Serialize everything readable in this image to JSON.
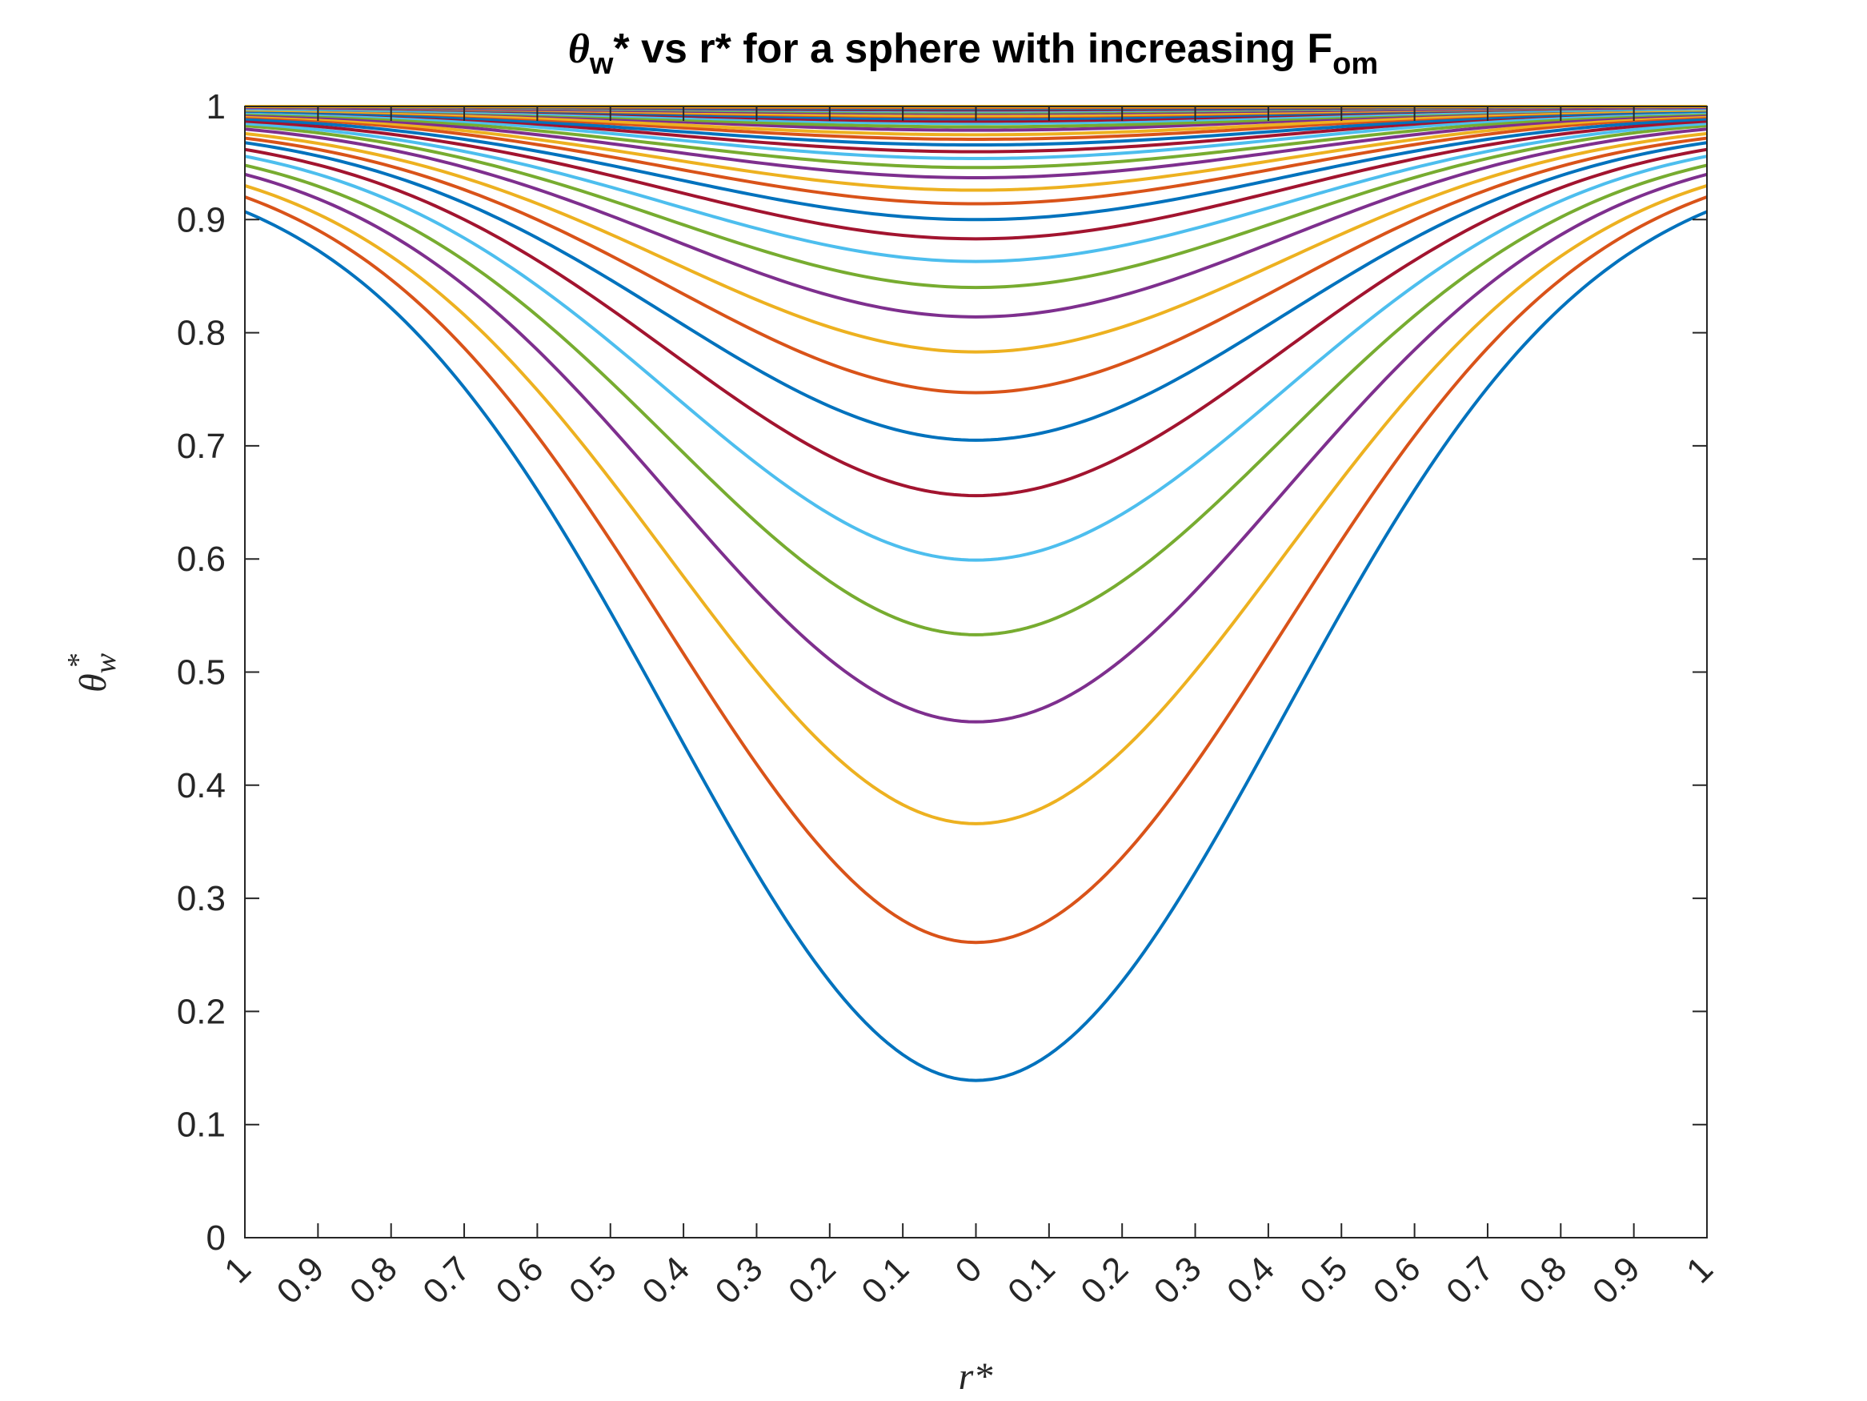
{
  "chart_data": {
    "type": "line",
    "title": {
      "theta": "θ",
      "theta_sub": "w",
      "middle": "* vs r* for a sphere with increasing F",
      "end_sub": "om"
    },
    "xlabel": "r*",
    "ylabel": {
      "base": "θ",
      "sub": "w",
      "sup": "*"
    },
    "x_range": [
      -1,
      1
    ],
    "ylim": [
      0,
      1
    ],
    "x_tick_values": [
      -1,
      -0.9,
      -0.8,
      -0.7,
      -0.6,
      -0.5,
      -0.4,
      -0.3,
      -0.2,
      -0.1,
      0,
      0.1,
      0.2,
      0.3,
      0.4,
      0.5,
      0.6,
      0.7,
      0.8,
      0.9,
      1
    ],
    "x_tick_labels": [
      "1",
      "0.9",
      "0.8",
      "0.7",
      "0.6",
      "0.5",
      "0.4",
      "0.3",
      "0.2",
      "0.1",
      "0",
      "0.1",
      "0.2",
      "0.3",
      "0.4",
      "0.5",
      "0.6",
      "0.7",
      "0.8",
      "0.9",
      "1"
    ],
    "y_tick_values": [
      0,
      0.1,
      0.2,
      0.3,
      0.4,
      0.5,
      0.6,
      0.7,
      0.8,
      0.9,
      1
    ],
    "y_tick_labels": [
      "0",
      "0.1",
      "0.2",
      "0.3",
      "0.4",
      "0.5",
      "0.6",
      "0.7",
      "0.8",
      "0.9",
      "1"
    ],
    "grid": false,
    "legend": "none",
    "color_cycle": [
      "#0072BD",
      "#D95319",
      "#EDB120",
      "#7E2F8E",
      "#77AC30",
      "#4DBEEE",
      "#A2142F"
    ],
    "series": [
      {
        "center": 0.139,
        "edge": 0.907
      },
      {
        "center": 0.261,
        "edge": 0.92
      },
      {
        "center": 0.366,
        "edge": 0.93
      },
      {
        "center": 0.456,
        "edge": 0.94
      },
      {
        "center": 0.533,
        "edge": 0.948
      },
      {
        "center": 0.599,
        "edge": 0.956
      },
      {
        "center": 0.656,
        "edge": 0.962
      },
      {
        "center": 0.705,
        "edge": 0.968
      },
      {
        "center": 0.747,
        "edge": 0.972
      },
      {
        "center": 0.783,
        "edge": 0.976
      },
      {
        "center": 0.814,
        "edge": 0.98
      },
      {
        "center": 0.84,
        "edge": 0.983
      },
      {
        "center": 0.863,
        "edge": 0.985
      },
      {
        "center": 0.883,
        "edge": 0.987
      },
      {
        "center": 0.9,
        "edge": 0.989
      },
      {
        "center": 0.914,
        "edge": 0.991
      },
      {
        "center": 0.926,
        "edge": 0.992
      },
      {
        "center": 0.937,
        "edge": 0.993
      },
      {
        "center": 0.946,
        "edge": 0.994
      },
      {
        "center": 0.954,
        "edge": 0.995
      },
      {
        "center": 0.96,
        "edge": 0.996
      },
      {
        "center": 0.966,
        "edge": 0.996
      },
      {
        "center": 0.971,
        "edge": 0.997
      },
      {
        "center": 0.975,
        "edge": 0.997
      },
      {
        "center": 0.979,
        "edge": 0.998
      },
      {
        "center": 0.982,
        "edge": 0.998
      },
      {
        "center": 0.985,
        "edge": 0.998
      },
      {
        "center": 0.987,
        "edge": 0.999
      },
      {
        "center": 0.989,
        "edge": 0.999
      },
      {
        "center": 0.991,
        "edge": 0.999
      },
      {
        "center": 0.992,
        "edge": 0.999
      },
      {
        "center": 0.994,
        "edge": 0.999
      },
      {
        "center": 0.995,
        "edge": 1.0
      },
      {
        "center": 0.996,
        "edge": 1.0
      },
      {
        "center": 0.997,
        "edge": 1.0
      },
      {
        "center": 0.998,
        "edge": 1.0
      },
      {
        "center": 0.999,
        "edge": 1.0
      },
      {
        "center": 1.0,
        "edge": 1.0
      }
    ]
  }
}
